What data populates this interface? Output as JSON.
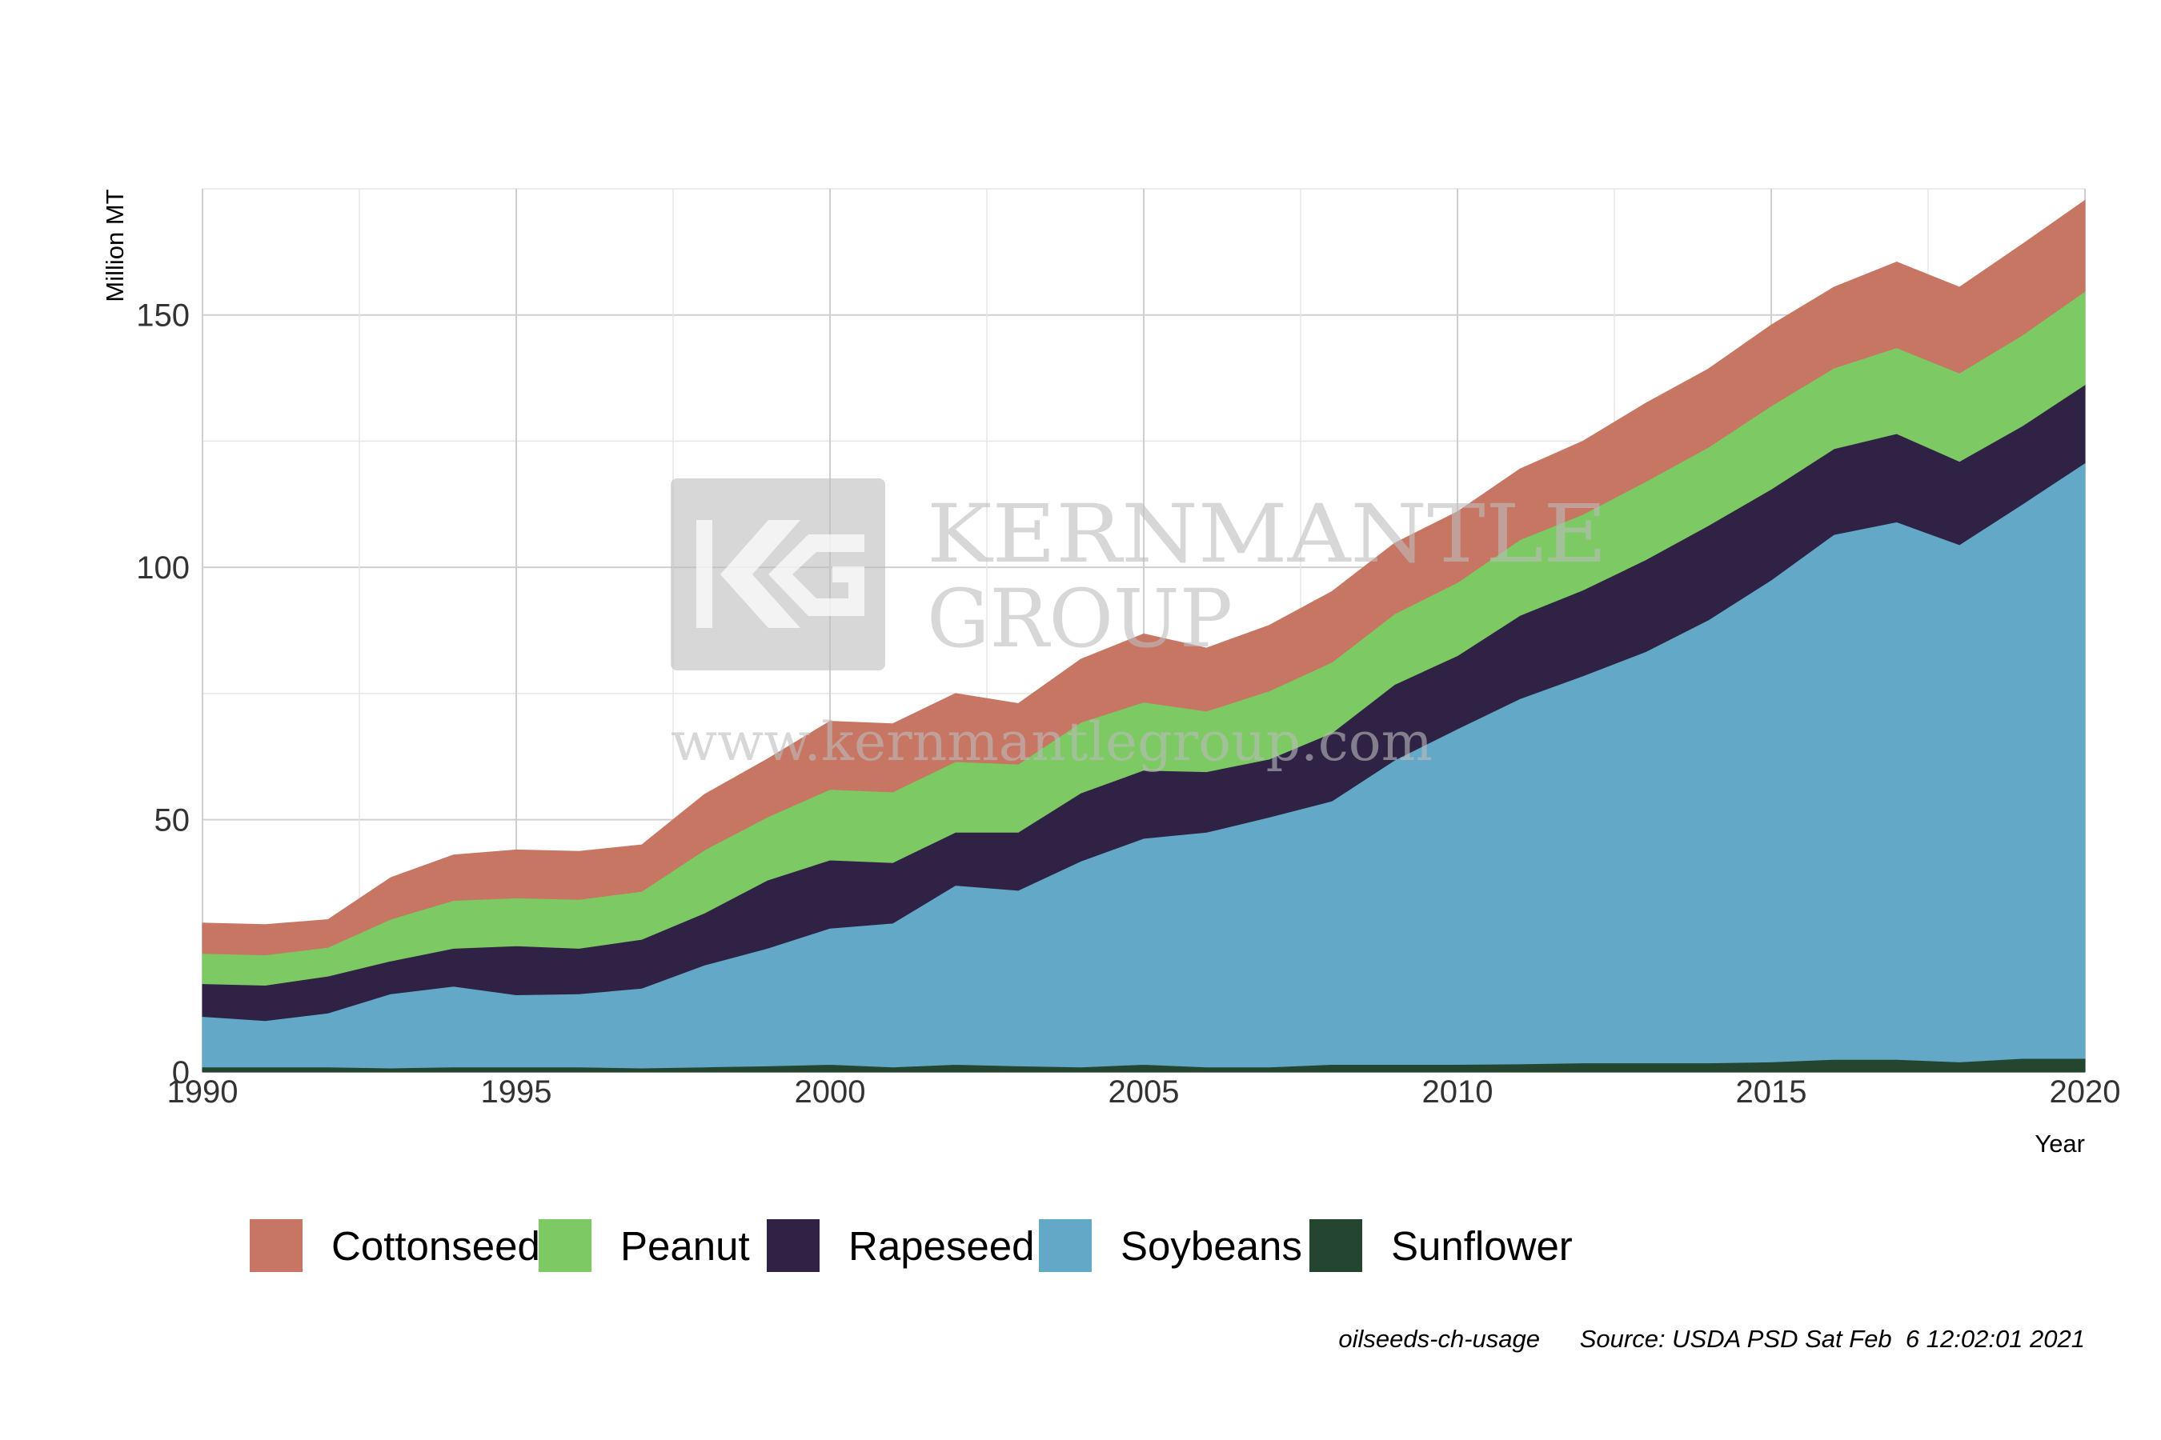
{
  "chart_data": {
    "type": "area",
    "stacked": true,
    "xlabel": "Year",
    "ylabel": "Million MT",
    "xlim": [
      1990,
      2020
    ],
    "ylim": [
      0,
      175
    ],
    "x_ticks": [
      1990,
      1995,
      2000,
      2005,
      2010,
      2015,
      2020
    ],
    "y_ticks": [
      0,
      50,
      100,
      150
    ],
    "grid": true,
    "legend_position": "bottom",
    "x": [
      1990,
      1991,
      1992,
      1993,
      1994,
      1995,
      1996,
      1997,
      1998,
      1999,
      2000,
      2001,
      2002,
      2003,
      2004,
      2005,
      2006,
      2007,
      2008,
      2009,
      2010,
      2011,
      2012,
      2013,
      2014,
      2015,
      2016,
      2017,
      2018,
      2019,
      2020
    ],
    "series": [
      {
        "name": "Sunflower",
        "color": "#244530",
        "values": [
          1.0,
          1.0,
          1.0,
          0.8,
          1.0,
          1.0,
          1.0,
          0.8,
          1.0,
          1.2,
          1.5,
          1.0,
          1.5,
          1.2,
          1.0,
          1.5,
          1.0,
          1.0,
          1.5,
          1.5,
          1.5,
          1.6,
          1.8,
          1.8,
          1.8,
          2.0,
          2.5,
          2.5,
          2.0,
          2.7,
          2.7
        ]
      },
      {
        "name": "Soybeans",
        "color": "#63a8c6",
        "values": [
          10.0,
          9.2,
          10.7,
          14.7,
          16.0,
          14.3,
          14.5,
          15.8,
          20.2,
          23.3,
          27.0,
          28.5,
          35.5,
          34.8,
          40.8,
          44.8,
          46.5,
          49.5,
          52.2,
          60.3,
          66.5,
          72.4,
          76.7,
          81.5,
          87.8,
          95.5,
          104.0,
          106.5,
          102.5,
          109.8,
          118.0
        ]
      },
      {
        "name": "Rapeseed",
        "color": "#2f2244",
        "values": [
          6.5,
          7.0,
          7.3,
          6.5,
          7.5,
          9.7,
          9.0,
          9.7,
          10.3,
          13.5,
          13.5,
          12.0,
          10.5,
          11.5,
          13.5,
          13.5,
          12.0,
          11.5,
          13.5,
          15.0,
          14.5,
          16.5,
          17.0,
          18.2,
          18.7,
          18.0,
          17.0,
          17.5,
          16.5,
          15.5,
          15.5
        ]
      },
      {
        "name": "Peanut",
        "color": "#7dc963",
        "values": [
          6.0,
          6.0,
          5.7,
          8.3,
          9.5,
          9.5,
          9.7,
          9.5,
          12.5,
          12.5,
          14.0,
          14.0,
          14.0,
          13.5,
          14.0,
          13.5,
          12.0,
          13.5,
          14.0,
          14.0,
          14.5,
          15.0,
          15.0,
          15.5,
          15.5,
          16.5,
          16.0,
          17.0,
          17.5,
          18.0,
          18.5
        ]
      },
      {
        "name": "Cottonseed",
        "color": "#c67662",
        "values": [
          6.0,
          6.0,
          5.5,
          8.2,
          9.0,
          9.5,
          9.5,
          9.2,
          11.0,
          11.5,
          13.5,
          13.5,
          13.5,
          12.0,
          12.5,
          13.5,
          12.5,
          13.0,
          14.0,
          14.0,
          14.0,
          14.0,
          14.5,
          15.5,
          15.5,
          16.0,
          16.0,
          17.0,
          17.0,
          18.0,
          18.0
        ]
      }
    ]
  },
  "legend_order": [
    "Cottonseed",
    "Peanut",
    "Rapeseed",
    "Soybeans",
    "Sunflower"
  ],
  "caption": {
    "id": "oilseeds-ch-usage",
    "source": "Source: USDA PSD Sat Feb  6 12:02:01 2021"
  },
  "watermark": {
    "line1": "KERNMANTLE",
    "line2": "GROUP",
    "url": "www.kernmantlegroup.com"
  }
}
